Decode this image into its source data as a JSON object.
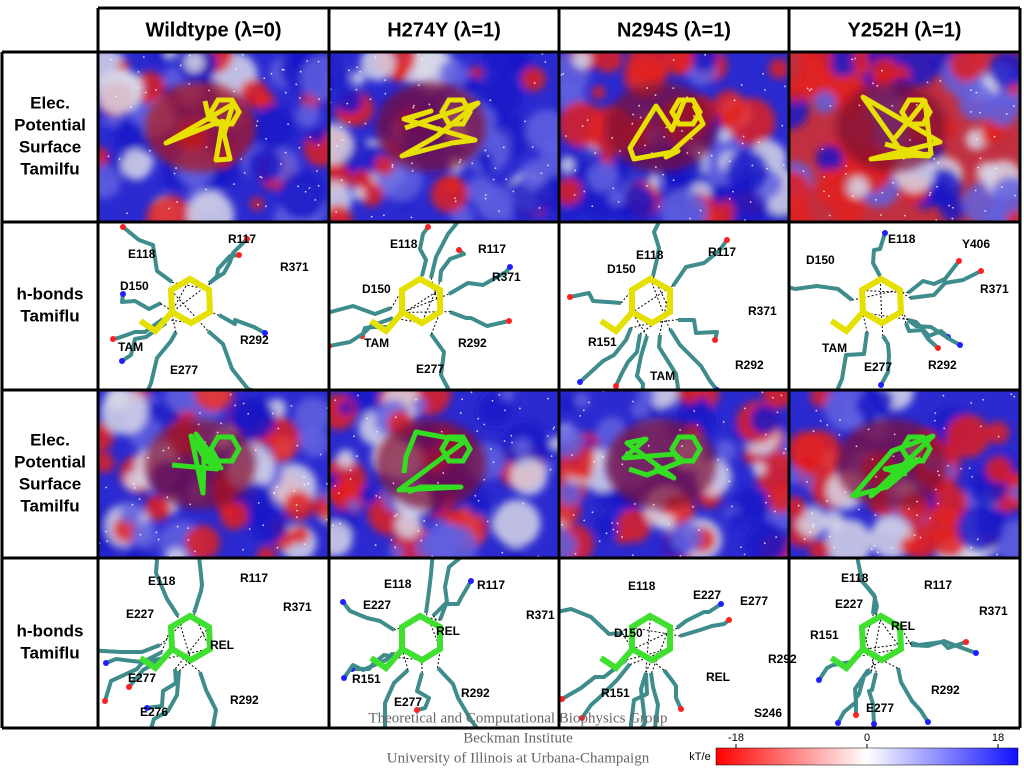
{
  "header": {
    "columns": [
      "Wildtype (λ=0)",
      "H274Y (λ=1)",
      "N294S (λ=1)",
      "Y252H (λ=1)"
    ]
  },
  "rows": [
    {
      "label": [
        "Elec.",
        "Potential",
        "Surface",
        "Tamilfu"
      ]
    },
    {
      "label": [
        "h-bonds",
        "Tamiflu"
      ],
      "cells": [
        [
          "E118",
          "R117",
          "R371",
          "D150",
          "TAM",
          "R292",
          "E277"
        ],
        [
          "E118",
          "R117",
          "R371",
          "D150",
          "TAM",
          "R292",
          "E277"
        ],
        [
          "E118",
          "R117",
          "D150",
          "R371",
          "R151",
          "TAM",
          "R292"
        ],
        [
          "E118",
          "Y406",
          "D150",
          "R371",
          "TAM",
          "E277",
          "R292"
        ]
      ]
    },
    {
      "label": [
        "Elec.",
        "Potential",
        "Surface",
        "Tamilfu"
      ]
    },
    {
      "label": [
        "h-bonds",
        "Tamiflu"
      ],
      "cells": [
        [
          "E118",
          "R117",
          "R371",
          "E227",
          "REL",
          "E277",
          "R292",
          "E276"
        ],
        [
          "E118",
          "R117",
          "E227",
          "R371",
          "REL",
          "R151",
          "E277",
          "R292"
        ],
        [
          "E118",
          "E227",
          "E277",
          "D150",
          "R292",
          "REL",
          "R151",
          "S246"
        ],
        [
          "E118",
          "R117",
          "E227",
          "R371",
          "R151",
          "REL",
          "R292",
          "E277"
        ]
      ]
    }
  ],
  "footer": [
    "Theoretical and Computational Biophysics Group",
    "Beckman Institute",
    "University of Illinois at Urbana-Champaign"
  ],
  "colorbar": {
    "label": "kT/e",
    "lim": [
      -18,
      18
    ],
    "ticks": [
      -18,
      0,
      18
    ]
  }
}
